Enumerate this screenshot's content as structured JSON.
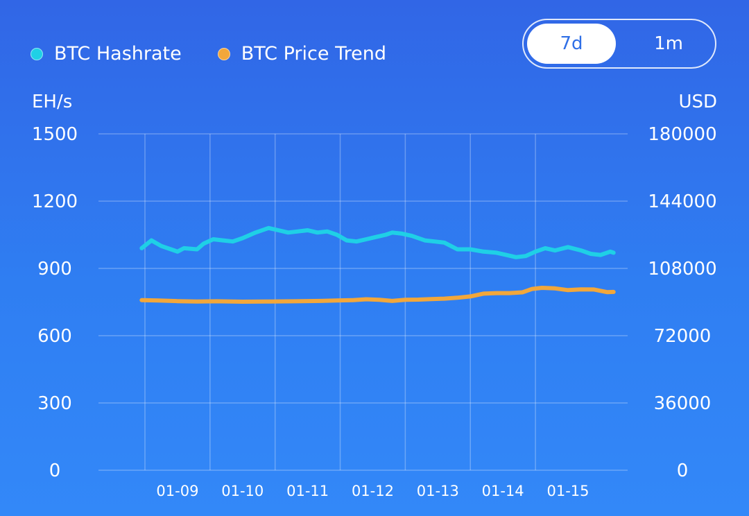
{
  "legend": [
    {
      "label": "BTC Hashrate",
      "color": "#1fd0e6"
    },
    {
      "label": "BTC Price Trend",
      "color": "#f2a73b"
    }
  ],
  "range_toggle": {
    "options": [
      "7d",
      "1m"
    ],
    "selected": "7d"
  },
  "chart_data": {
    "type": "line",
    "left_axis": {
      "unit": "EH/s",
      "ylim": [
        0,
        1500
      ],
      "ticks": [
        1500,
        1200,
        900,
        600,
        300,
        0
      ]
    },
    "right_axis": {
      "unit": "USD",
      "ylim": [
        0,
        180000
      ],
      "ticks": [
        180000,
        144000,
        108000,
        72000,
        36000,
        0
      ]
    },
    "x_ticks": [
      "01-09",
      "01-10",
      "01-11",
      "01-12",
      "01-13",
      "01-14",
      "01-15"
    ],
    "grid": true,
    "legend_position": "top-left",
    "series": [
      {
        "name": "BTC Hashrate",
        "axis": "left",
        "color": "#1fd0e6",
        "x": [
          8.45,
          8.6,
          8.75,
          8.9,
          9.0,
          9.1,
          9.3,
          9.4,
          9.55,
          9.7,
          9.85,
          10.0,
          10.2,
          10.4,
          10.55,
          10.7,
          10.85,
          11.0,
          11.15,
          11.3,
          11.45,
          11.6,
          11.75,
          11.9,
          12.05,
          12.2,
          12.3,
          12.45,
          12.6,
          12.8,
          12.95,
          13.1,
          13.3,
          13.5,
          13.7,
          13.9,
          14.05,
          14.2,
          14.35,
          14.5,
          14.65,
          14.8,
          15.0,
          15.2,
          15.35,
          15.5,
          15.65,
          15.7
        ],
        "y": [
          990,
          1025,
          1000,
          985,
          975,
          990,
          985,
          1010,
          1030,
          1025,
          1020,
          1035,
          1060,
          1080,
          1070,
          1060,
          1065,
          1070,
          1060,
          1065,
          1050,
          1025,
          1020,
          1030,
          1040,
          1050,
          1060,
          1055,
          1045,
          1025,
          1020,
          1015,
          985,
          985,
          975,
          970,
          960,
          950,
          955,
          975,
          990,
          980,
          995,
          980,
          965,
          960,
          975,
          970
        ]
      },
      {
        "name": "BTC Price Trend",
        "axis": "right",
        "color": "#f2a73b",
        "x": [
          8.45,
          8.7,
          9.0,
          9.3,
          9.6,
          10.0,
          10.4,
          10.8,
          11.2,
          11.5,
          11.7,
          11.9,
          12.1,
          12.3,
          12.5,
          12.7,
          12.9,
          13.1,
          13.3,
          13.5,
          13.7,
          13.9,
          14.1,
          14.3,
          14.45,
          14.6,
          14.8,
          15.0,
          15.2,
          15.4,
          15.6,
          15.7
        ],
        "y": [
          91000,
          90800,
          90500,
          90300,
          90400,
          90200,
          90300,
          90400,
          90600,
          90900,
          91000,
          91500,
          91200,
          90600,
          91200,
          91300,
          91600,
          91800,
          92300,
          93000,
          94500,
          94800,
          94800,
          95200,
          97000,
          97600,
          97300,
          96400,
          96800,
          96700,
          95300,
          95400
        ]
      }
    ]
  }
}
